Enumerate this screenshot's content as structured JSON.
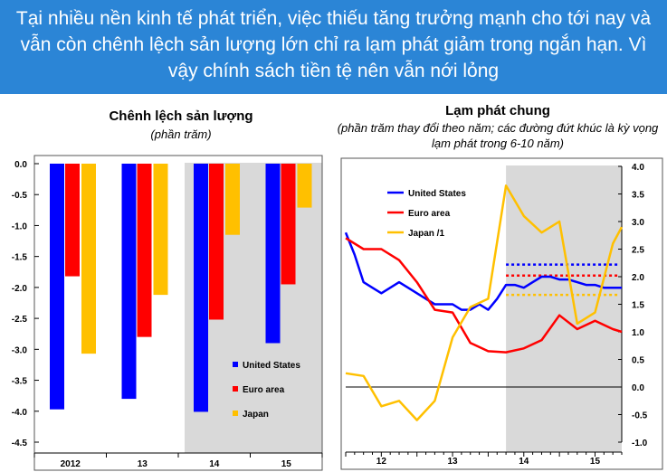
{
  "header": {
    "title": "Tại nhiều nền kinh tế phát triển, việc thiếu tăng trưởng mạnh cho tới nay và vẫn còn chênh lệch sản lượng lớn chỉ ra lạm phát giảm trong ngắn hạn. Vì vậy chính sách tiền tệ nên vẫn nới lỏng"
  },
  "colors": {
    "header_bg": "#2b85d6",
    "united_states": "#0000ff",
    "euro_area": "#ff0000",
    "japan": "#ffc000",
    "shade": "#d9d9d9"
  },
  "chart_data": [
    {
      "type": "bar",
      "title": "Chênh lệch sản lượng",
      "subtitle": "(phần trăm)",
      "categories": [
        "2012",
        "13",
        "14",
        "15"
      ],
      "ylim": [
        -4.5,
        0.0
      ],
      "yticks": [
        "0.0",
        "-0.5",
        "-1.0",
        "-1.5",
        "-2.0",
        "-2.5",
        "-3.0",
        "-3.5",
        "-4.0",
        "-4.5"
      ],
      "shaded_categories": [
        "14",
        "15"
      ],
      "legend_position": "bottom-right",
      "series": [
        {
          "name": "United States",
          "color": "#0000ff",
          "values": [
            -3.97,
            -3.8,
            -4.01,
            -2.9
          ]
        },
        {
          "name": "Euro area",
          "color": "#ff0000",
          "values": [
            -1.82,
            -2.8,
            -2.52,
            -1.95
          ]
        },
        {
          "name": "Japan",
          "color": "#ffc000",
          "values": [
            -3.07,
            -2.12,
            -1.15,
            -0.71
          ]
        }
      ]
    },
    {
      "type": "line",
      "title": "Lạm phát chung",
      "subtitle": "(phần trăm thay đổi theo năm; các đường đứt khúc là kỳ vọng lạm phát trong 6-10 năm)",
      "x_labels": [
        "12",
        "13",
        "14",
        "15"
      ],
      "x_range": [
        2011.5,
        2015.375
      ],
      "x_label_positions": [
        2012,
        2013,
        2014,
        2015
      ],
      "ylim": [
        -1.0,
        4.0
      ],
      "yticks": [
        "4.0",
        "3.5",
        "3.0",
        "2.5",
        "2.0",
        "1.5",
        "1.0",
        "0.5",
        "0.0",
        "-0.5",
        "-1.0"
      ],
      "y_axis_side": "right",
      "shaded_x_from": 2013.75,
      "zero_line": true,
      "legend_position": "top-left",
      "series": [
        {
          "name": "United States",
          "color": "#0000ff",
          "x": [
            2011.5,
            2011.625,
            2011.75,
            2011.875,
            2012.0,
            2012.125,
            2012.25,
            2012.375,
            2012.5,
            2012.625,
            2012.75,
            2012.875,
            2013.0,
            2013.125,
            2013.25,
            2013.375,
            2013.5,
            2013.625,
            2013.75,
            2013.875,
            2014.0,
            2014.125,
            2014.25,
            2014.375,
            2014.5,
            2014.625,
            2014.75,
            2014.875,
            2015.0,
            2015.125,
            2015.25,
            2015.375
          ],
          "y": [
            2.8,
            2.4,
            1.9,
            1.8,
            1.7,
            1.8,
            1.9,
            1.8,
            1.7,
            1.6,
            1.5,
            1.5,
            1.5,
            1.4,
            1.4,
            1.5,
            1.4,
            1.6,
            1.85,
            1.85,
            1.8,
            1.9,
            2.0,
            2.0,
            1.95,
            1.95,
            1.9,
            1.85,
            1.85,
            1.8,
            1.8,
            1.8
          ]
        },
        {
          "name": "Euro area",
          "color": "#ff0000",
          "x": [
            2011.5,
            2011.75,
            2012.0,
            2012.25,
            2012.5,
            2012.75,
            2013.0,
            2013.25,
            2013.5,
            2013.75,
            2014.0,
            2014.25,
            2014.5,
            2014.75,
            2015.0,
            2015.25,
            2015.375
          ],
          "y": [
            2.7,
            2.5,
            2.5,
            2.3,
            1.9,
            1.4,
            1.35,
            0.8,
            0.65,
            0.63,
            0.7,
            0.85,
            1.3,
            1.05,
            1.2,
            1.05,
            1.0
          ]
        },
        {
          "name": "Japan /1",
          "color": "#ffc000",
          "x": [
            2011.5,
            2011.75,
            2012.0,
            2012.25,
            2012.5,
            2012.75,
            2013.0,
            2013.25,
            2013.5,
            2013.75,
            2014.0,
            2014.25,
            2014.5,
            2014.75,
            2015.0,
            2015.25,
            2015.375
          ],
          "y": [
            0.25,
            0.2,
            -0.35,
            -0.25,
            -0.6,
            -0.25,
            0.9,
            1.45,
            1.6,
            3.65,
            3.1,
            2.8,
            3.0,
            1.15,
            1.35,
            2.6,
            2.9
          ]
        }
      ],
      "expectations": [
        {
          "name": "United States",
          "color": "#0000ff",
          "value": 2.22,
          "x_from": 2013.75
        },
        {
          "name": "Euro area",
          "color": "#ff0000",
          "value": 2.02,
          "x_from": 2013.75
        },
        {
          "name": "Japan",
          "color": "#ffc000",
          "value": 1.67,
          "x_from": 2013.75
        }
      ]
    }
  ]
}
